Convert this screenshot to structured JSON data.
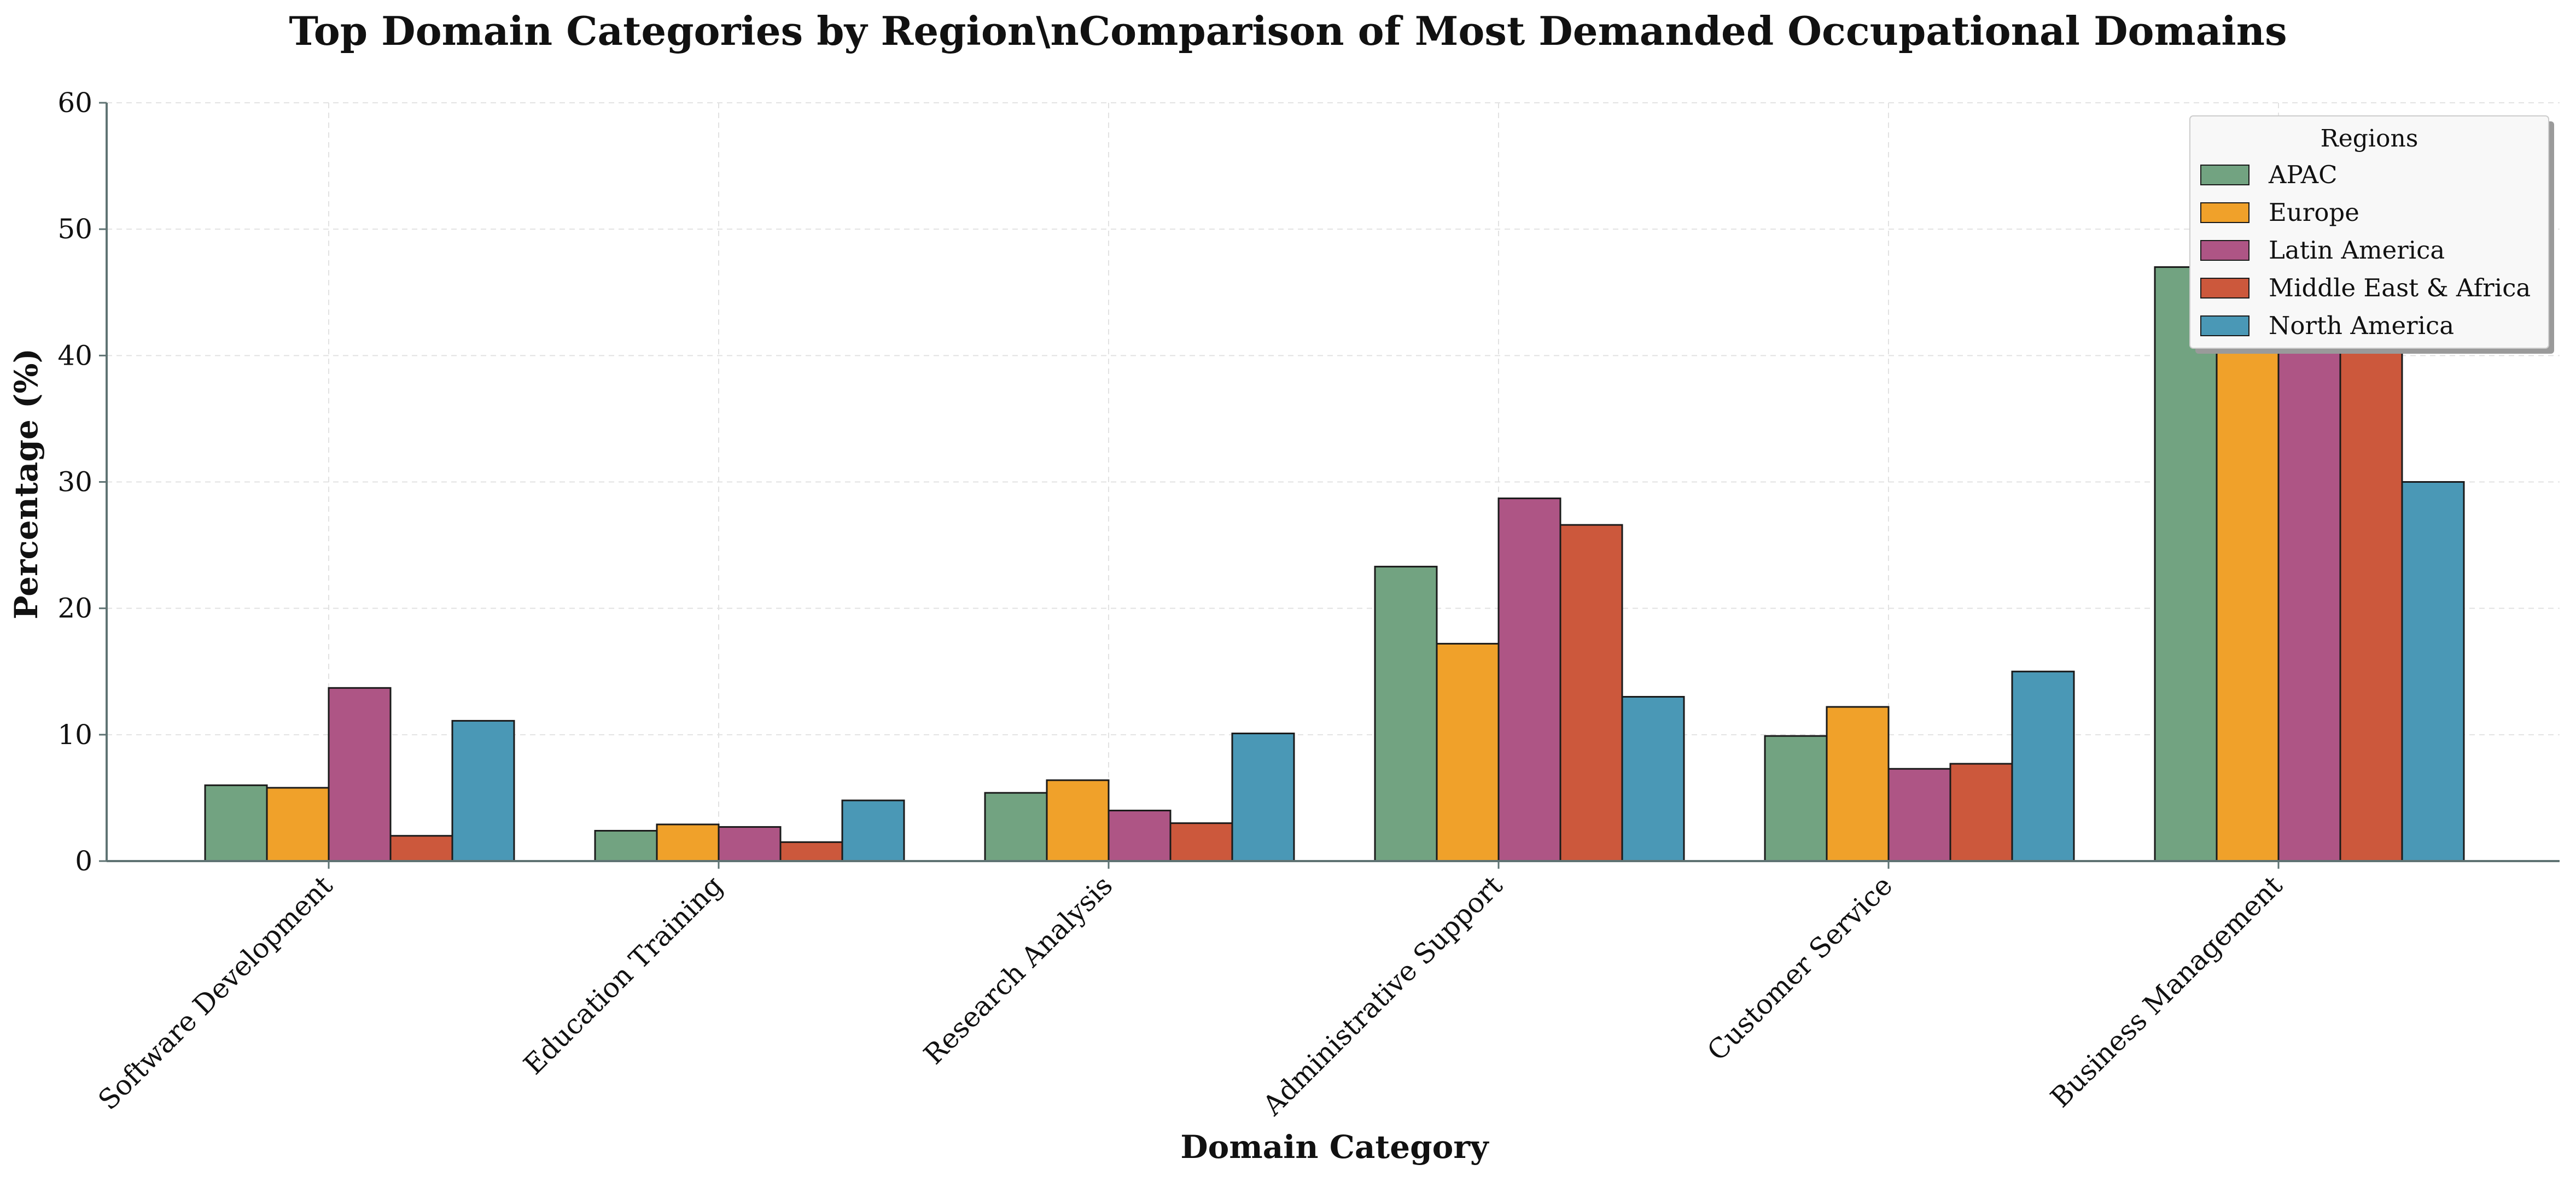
{
  "chart_data": {
    "type": "bar",
    "title": "Top Domain Categories by Region\\nComparison of Most Demanded Occupational Domains",
    "xlabel": "Domain Category",
    "ylabel": "Percentage (%)",
    "ylim": [
      0,
      60
    ],
    "yticks": [
      0,
      10,
      20,
      30,
      40,
      50,
      60
    ],
    "grid": true,
    "legend_title": "Regions",
    "legend_position": "top-right",
    "categories": [
      "Software Development",
      "Education Training",
      "Research Analysis",
      "Administrative Support",
      "Customer Service",
      "Business Management"
    ],
    "series": [
      {
        "name": "APAC",
        "color": "#72a381",
        "values": [
          6.0,
          2.4,
          5.4,
          23.3,
          9.9,
          47.0
        ]
      },
      {
        "name": "Europe",
        "color": "#f0a12a",
        "values": [
          5.8,
          2.9,
          6.4,
          17.2,
          12.2,
          52.0
        ]
      },
      {
        "name": "Latin America",
        "color": "#ae5585",
        "values": [
          13.7,
          2.7,
          4.0,
          28.7,
          7.3,
          40.3
        ]
      },
      {
        "name": "Middle East & Africa",
        "color": "#cc583c",
        "values": [
          2.0,
          1.5,
          3.0,
          26.6,
          7.7,
          58.0
        ]
      },
      {
        "name": "North America",
        "color": "#4a98b6",
        "values": [
          11.1,
          4.8,
          10.1,
          13.0,
          15.0,
          30.0
        ]
      }
    ]
  }
}
